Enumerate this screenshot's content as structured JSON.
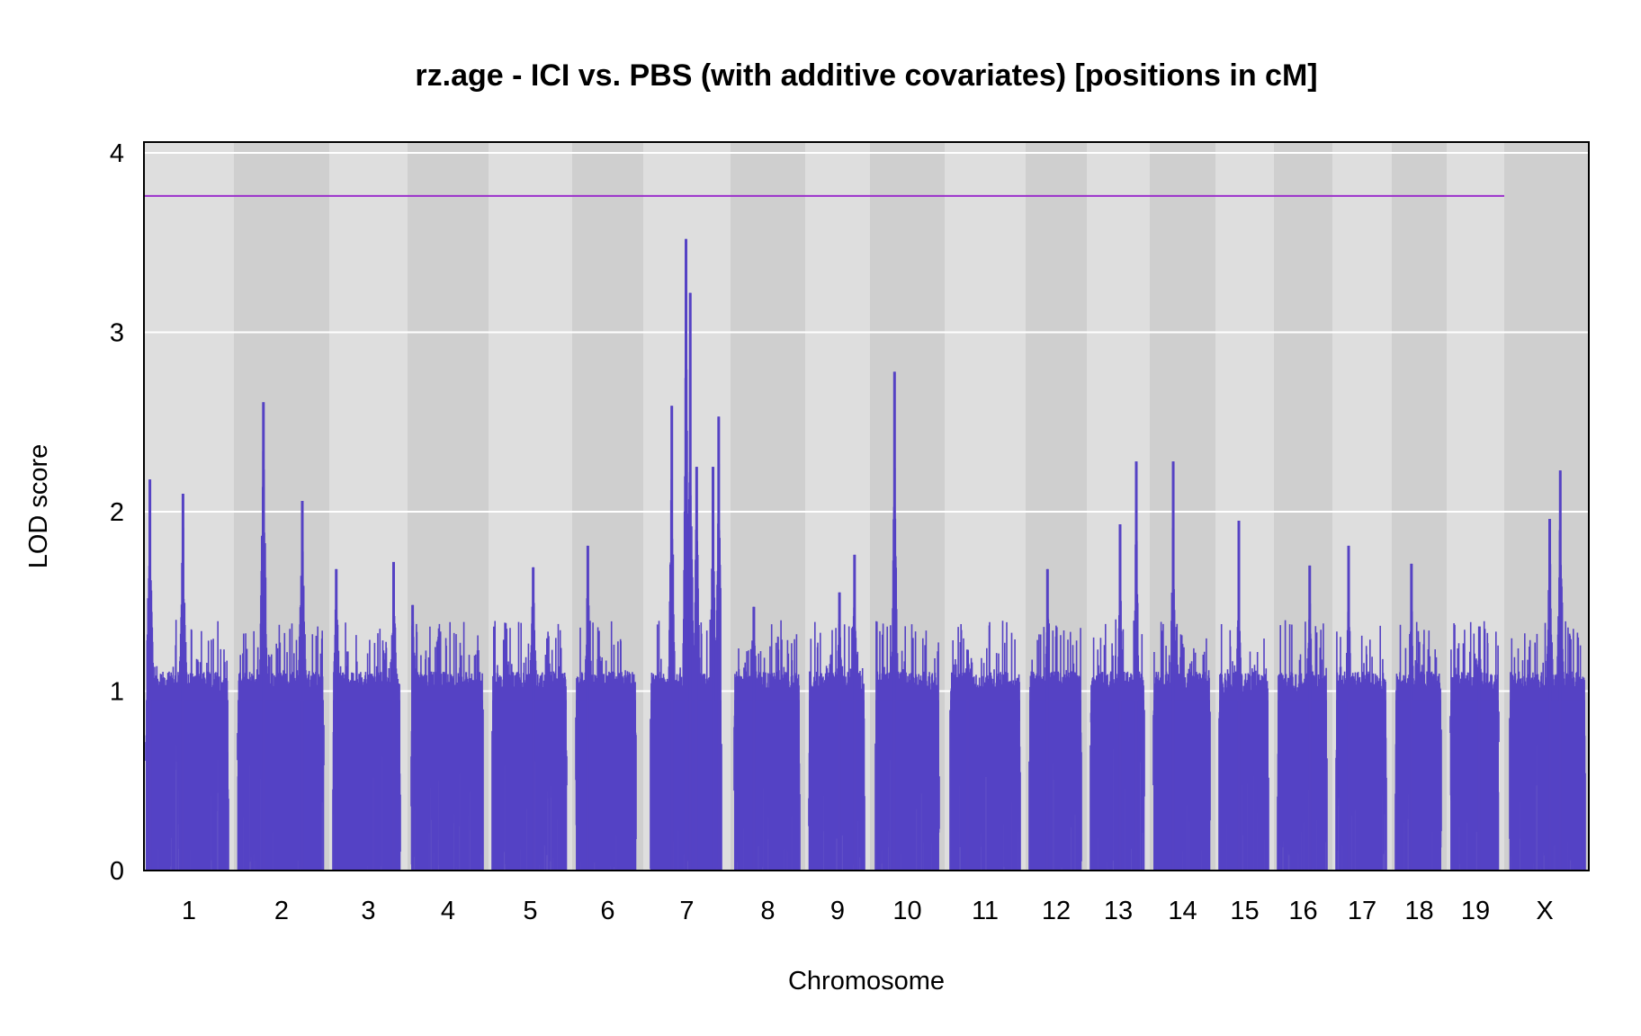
{
  "chart_data": {
    "type": "line",
    "title": "rz.age - ICI vs. PBS (with additive covariates) [positions in cM]",
    "xlabel": "Chromosome",
    "ylabel": "LOD score",
    "ylim": [
      0,
      4
    ],
    "yticks": [
      0,
      1,
      2,
      3,
      4
    ],
    "grid": true,
    "threshold": 3.76,
    "colors": {
      "lod": "#5542c4",
      "threshold": "#9b30cc",
      "band_light": "#dedede",
      "band_dark": "#cfcfcf",
      "grid": "#ffffff"
    },
    "chromosomes": [
      {
        "name": "1",
        "background": [
          0.01,
          0.0625
        ],
        "trace": [
          0.0035,
          0.0585
        ]
      },
      {
        "name": "2",
        "background": [
          0.0625,
          0.128
        ],
        "trace": [
          0.064,
          0.1255
        ]
      },
      {
        "name": "3",
        "background": [
          0.128,
          0.183
        ],
        "trace": [
          0.1315,
          0.1795
        ]
      },
      {
        "name": "4",
        "background": [
          0.183,
          0.239
        ],
        "trace": [
          0.186,
          0.236
        ]
      },
      {
        "name": "5",
        "background": [
          0.239,
          0.2975
        ],
        "trace": [
          0.242,
          0.295
        ]
      },
      {
        "name": "6",
        "background": [
          0.2975,
          0.4465
        ],
        "trace": [
          0.3005,
          0.3445
        ]
      },
      {
        "name": "7",
        "background": [
          0.3525,
          0.4095
        ],
        "trace": [
          0.3555,
          0.4095
        ]
      },
      {
        "name": "8",
        "background": [
          0.4095,
          0.5075
        ],
        "trace": [
          0.4125,
          0.4625
        ]
      },
      {
        "name": "9",
        "background": [
          0.5075,
          0.4605
        ],
        "trace": [
          0.4655,
          0.5075
        ]
      },
      {
        "name": "10",
        "background": [
          0.5075,
          0.5605
        ],
        "trace": [
          0.5105,
          0.5605
        ]
      },
      {
        "name": "11",
        "background": [
          0.5605,
          0.6145
        ],
        "trace": [
          0.5635,
          0.6145
        ]
      },
      {
        "name": "12",
        "background": [
          0.6145,
          0.6585
        ],
        "trace": [
          0.6175,
          0.6585
        ]
      },
      {
        "name": "13",
        "background": [
          0.6585,
          0.7025
        ],
        "trace": [
          0.6615,
          0.7025
        ]
      },
      {
        "name": "14",
        "background": [
          0.7025,
          0.7475
        ],
        "trace": [
          0.7055,
          0.7475
        ]
      },
      {
        "name": "15",
        "background": [
          0.7475,
          0.7895
        ],
        "trace": [
          0.7505,
          0.7895
        ]
      },
      {
        "name": "16",
        "background": [
          0.7895,
          0.8305
        ],
        "trace": [
          0.7925,
          0.8305
        ]
      },
      {
        "name": "17",
        "background": [
          0.8305,
          0.8715
        ],
        "trace": [
          0.8335,
          0.8715
        ]
      },
      {
        "name": "18",
        "background": [
          0.8715,
          0.9115
        ],
        "trace": [
          0.8745,
          0.9115
        ]
      },
      {
        "name": "19",
        "background": [
          0.9115,
          0.9465
        ],
        "trace": [
          0.9145,
          0.9465
        ]
      },
      {
        "name": "X",
        "background": [
          0.9465,
          0.9985
        ],
        "trace": [
          0.9495,
          0.9985
        ]
      }
    ],
    "peaks": [
      {
        "chr": "1",
        "pos": 0.05,
        "lod": 2.18
      },
      {
        "chr": "1",
        "pos": 0.45,
        "lod": 2.1
      },
      {
        "chr": "2",
        "pos": 0.3,
        "lod": 2.61
      },
      {
        "chr": "2",
        "pos": 0.75,
        "lod": 2.06
      },
      {
        "chr": "3",
        "pos": 0.05,
        "lod": 1.68
      },
      {
        "chr": "3",
        "pos": 0.9,
        "lod": 1.72
      },
      {
        "chr": "4",
        "pos": 0.02,
        "lod": 1.48
      },
      {
        "chr": "5",
        "pos": 0.55,
        "lod": 1.69
      },
      {
        "chr": "6",
        "pos": 0.2,
        "lod": 1.81
      },
      {
        "chr": "7",
        "pos": 0.3,
        "lod": 2.59
      },
      {
        "chr": "7",
        "pos": 0.5,
        "lod": 3.52
      },
      {
        "chr": "7",
        "pos": 0.56,
        "lod": 3.22
      },
      {
        "chr": "7",
        "pos": 0.65,
        "lod": 2.25
      },
      {
        "chr": "7",
        "pos": 0.88,
        "lod": 2.25
      },
      {
        "chr": "7",
        "pos": 0.96,
        "lod": 2.53
      },
      {
        "chr": "8",
        "pos": 0.3,
        "lod": 1.47
      },
      {
        "chr": "9",
        "pos": 0.55,
        "lod": 1.55
      },
      {
        "chr": "9",
        "pos": 0.82,
        "lod": 1.76
      },
      {
        "chr": "10",
        "pos": 0.3,
        "lod": 2.78
      },
      {
        "chr": "11",
        "pos": 0.25,
        "lod": 1.23
      },
      {
        "chr": "12",
        "pos": 0.35,
        "lod": 1.68
      },
      {
        "chr": "13",
        "pos": 0.55,
        "lod": 1.93
      },
      {
        "chr": "13",
        "pos": 0.85,
        "lod": 2.28
      },
      {
        "chr": "14",
        "pos": 0.35,
        "lod": 2.28
      },
      {
        "chr": "15",
        "pos": 0.4,
        "lod": 1.95
      },
      {
        "chr": "16",
        "pos": 0.65,
        "lod": 1.7
      },
      {
        "chr": "17",
        "pos": 0.25,
        "lod": 1.81
      },
      {
        "chr": "18",
        "pos": 0.35,
        "lod": 1.71
      },
      {
        "chr": "19",
        "pos": 0.6,
        "lod": 1.36
      },
      {
        "chr": "X",
        "pos": 0.53,
        "lod": 1.96
      },
      {
        "chr": "X",
        "pos": 0.67,
        "lod": 2.23
      }
    ]
  }
}
